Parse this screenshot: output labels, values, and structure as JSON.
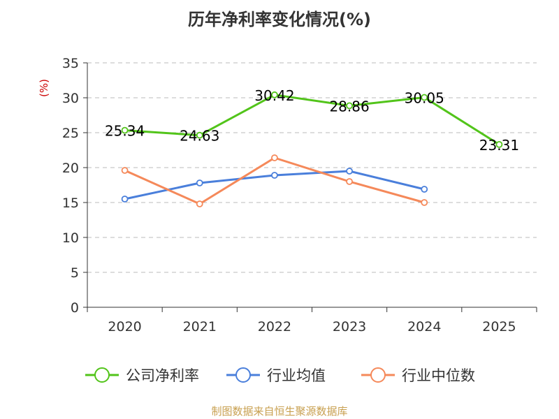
{
  "chart_data": {
    "type": "line",
    "title": "历年净利率变化情况(%)",
    "ylabel": "(%)",
    "categories": [
      "2020",
      "2021",
      "2022",
      "2023",
      "2024",
      "2025"
    ],
    "ylim": [
      0,
      35
    ],
    "yticks": [
      0,
      5,
      10,
      15,
      20,
      25,
      30,
      35
    ],
    "grid": true,
    "legend_position": "bottom",
    "series": [
      {
        "name": "公司净利率",
        "color": "#52c41a",
        "values": [
          25.34,
          24.63,
          30.42,
          28.86,
          30.05,
          23.31
        ],
        "labels": [
          "25.34",
          "24.63",
          "30.42",
          "28.86",
          "30.05",
          "23.31"
        ]
      },
      {
        "name": "行业均值",
        "color": "#4a7fdb",
        "values": [
          15.5,
          17.8,
          18.9,
          19.5,
          16.9,
          null
        ]
      },
      {
        "name": "行业中位数",
        "color": "#f5895a",
        "values": [
          19.6,
          14.8,
          21.4,
          18.0,
          15.0,
          null
        ]
      }
    ]
  },
  "source_text": "制图数据来自恒生聚源数据库",
  "colors": {
    "axis": "#333333",
    "grid": "#bbbbbb",
    "ylabel": "#cc0000",
    "source": "#c8a050"
  }
}
